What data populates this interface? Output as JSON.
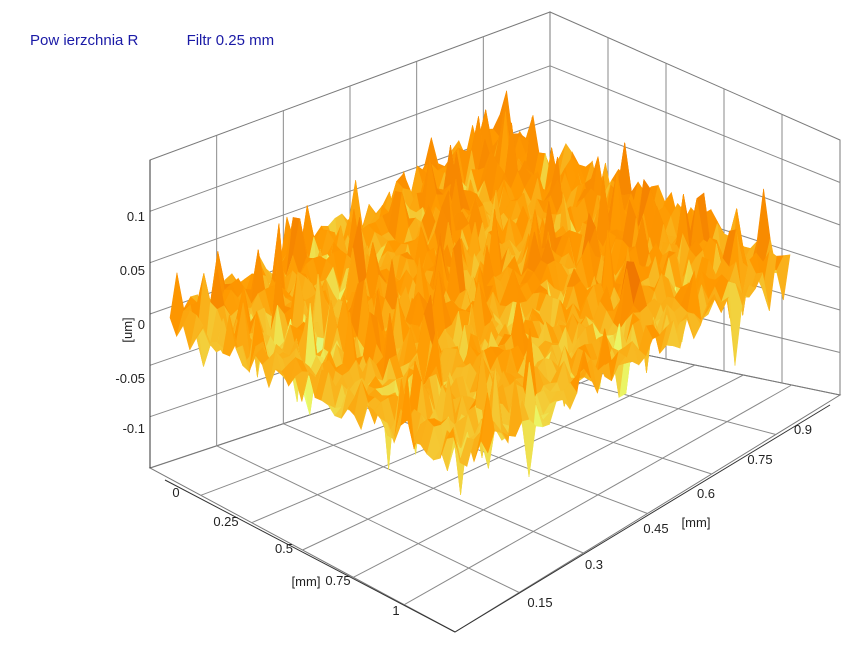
{
  "header": {
    "title": "Pow ierzchnia R",
    "filter": "Filtr 0.25 mm"
  },
  "chart_data": {
    "type": "surface3d",
    "title": "Pow ierzchnia R",
    "subtitle": "Filtr 0.25 mm",
    "x_axis": {
      "label": "[mm]",
      "ticks": [
        "0",
        "0.25",
        "0.5",
        "0.75",
        "1"
      ],
      "range": [
        0,
        1.2
      ]
    },
    "y_axis": {
      "label": "[mm]",
      "ticks": [
        "0.15",
        "0.3",
        "0.45",
        "0.6",
        "0.75",
        "0.9"
      ],
      "range": [
        0.1,
        0.95
      ]
    },
    "z_axis": {
      "label": "[um]",
      "ticks": [
        "0.1",
        "0.05",
        "0",
        "-0.05",
        "-0.1"
      ],
      "range": [
        -0.15,
        0.15
      ]
    },
    "grid": true,
    "colors": {
      "low": "#8fb0e8",
      "mid": "#e8ff70",
      "high": "#ff9a00",
      "peak": "#f07800"
    }
  }
}
